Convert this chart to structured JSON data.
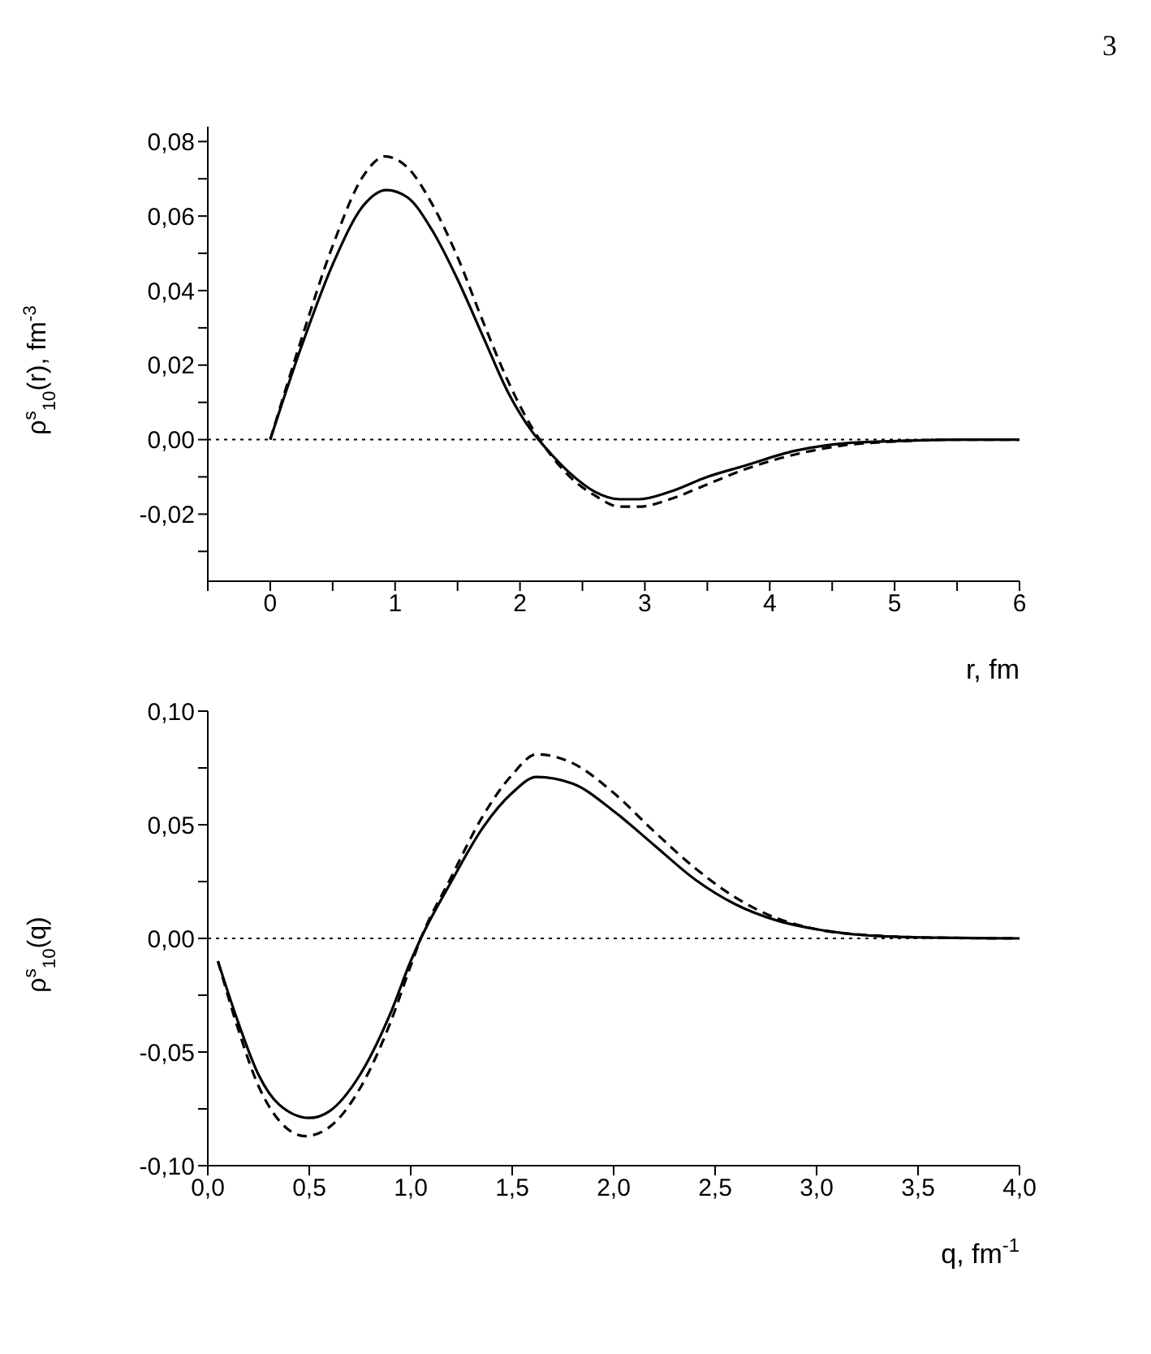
{
  "chart_data": [
    {
      "type": "line",
      "annotations": [
        "3"
      ],
      "xlabel": "r, fm",
      "ylabel": "ρ$^{s}$$_{10}$(r), fm$^{-3}$",
      "xlim": [
        -0.5,
        6
      ],
      "xticks": [
        {
          "value": -0.5,
          "label": null
        },
        0,
        {
          "value": 0.5,
          "label": null
        },
        1,
        {
          "value": 1.5,
          "label": null
        },
        2,
        {
          "value": 2.5,
          "label": null
        },
        3,
        {
          "value": 3.5,
          "label": null
        },
        4,
        {
          "value": 4.5,
          "label": null
        },
        5,
        {
          "value": 5.5,
          "label": null
        },
        6
      ],
      "ylim": [
        -0.038,
        0.084
      ],
      "yticks": [
        {
          "value": -0.03,
          "label": null
        },
        {
          "value": -0.02,
          "label": "-0,02"
        },
        {
          "value": -0.01,
          "label": null
        },
        {
          "value": 0,
          "label": "0,00"
        },
        {
          "value": 0.01,
          "label": null
        },
        {
          "value": 0.02,
          "label": "0,02"
        },
        {
          "value": 0.03,
          "label": null
        },
        {
          "value": 0.04,
          "label": "0,04"
        },
        {
          "value": 0.05,
          "label": null
        },
        {
          "value": 0.06,
          "label": "0,06"
        },
        {
          "value": 0.07,
          "label": null
        },
        {
          "value": 0.08,
          "label": "0,08"
        }
      ],
      "marker": "none",
      "ref_lines": [
        {
          "axis": "y",
          "value": 0,
          "line_style": "dotted",
          "color": "#000000"
        }
      ],
      "series": [
        {
          "color": "#000000",
          "line_style": "solid",
          "x": [
            0,
            0.25,
            0.5,
            0.75,
            0.93,
            1.1,
            1.3,
            1.5,
            1.7,
            1.9,
            2.1,
            2.2,
            2.4,
            2.6,
            2.8,
            2.95,
            3.2,
            3.5,
            3.8,
            4.2,
            4.6,
            5,
            5.5,
            6
          ],
          "values": [
            0,
            0.025,
            0.047,
            0.063,
            0.067,
            0.065,
            0.056,
            0.043,
            0.028,
            0.013,
            0.002,
            -0.002,
            -0.009,
            -0.014,
            -0.016,
            -0.016,
            -0.014,
            -0.01,
            -0.007,
            -0.003,
            -0.001,
            -0.0004,
            0,
            0
          ]
        },
        {
          "color": "#000000",
          "line_style": "dashed",
          "x": [
            0,
            0.25,
            0.5,
            0.75,
            0.92,
            1.1,
            1.3,
            1.5,
            1.7,
            1.9,
            2.1,
            2.2,
            2.4,
            2.6,
            2.8,
            2.95,
            3.2,
            3.5,
            3.8,
            4.2,
            4.6,
            5,
            5.5,
            6
          ],
          "values": [
            0,
            0.027,
            0.052,
            0.071,
            0.076,
            0.073,
            0.063,
            0.049,
            0.032,
            0.016,
            0.003,
            -0.002,
            -0.01,
            -0.015,
            -0.018,
            -0.018,
            -0.016,
            -0.012,
            -0.008,
            -0.004,
            -0.0015,
            -0.0005,
            0,
            0
          ]
        }
      ]
    },
    {
      "type": "line",
      "xlabel": "q, fm$^{-1}$",
      "ylabel": "ρ$^{s}$$_{10}$(q)",
      "xlim": [
        0,
        4
      ],
      "xticks": [
        {
          "value": 0,
          "label": "0,0"
        },
        {
          "value": 0.5,
          "label": "0,5"
        },
        {
          "value": 1,
          "label": "1,0"
        },
        {
          "value": 1.5,
          "label": "1,5"
        },
        {
          "value": 2,
          "label": "2,0"
        },
        {
          "value": 2.5,
          "label": "2,5"
        },
        {
          "value": 3,
          "label": "3,0"
        },
        {
          "value": 3.5,
          "label": "3,5"
        },
        {
          "value": 4,
          "label": "4,0"
        }
      ],
      "ylim": [
        -0.1,
        0.1
      ],
      "yticks": [
        {
          "value": -0.1,
          "label": "-0,10"
        },
        {
          "value": -0.075,
          "label": null
        },
        {
          "value": -0.05,
          "label": "-0,05"
        },
        {
          "value": -0.025,
          "label": null
        },
        {
          "value": 0,
          "label": "0,00"
        },
        {
          "value": 0.025,
          "label": null
        },
        {
          "value": 0.05,
          "label": "0,05"
        },
        {
          "value": 0.075,
          "label": null
        },
        {
          "value": 0.1,
          "label": "0,10"
        }
      ],
      "marker": "none",
      "ref_lines": [
        {
          "axis": "y",
          "value": 0,
          "line_style": "dotted",
          "color": "#000000"
        }
      ],
      "series": [
        {
          "color": "#000000",
          "line_style": "solid",
          "x": [
            0.05,
            0.15,
            0.25,
            0.35,
            0.5,
            0.6,
            0.75,
            0.9,
            1,
            1.05,
            1.2,
            1.35,
            1.5,
            1.62,
            1.8,
            2,
            2.2,
            2.4,
            2.6,
            2.8,
            3,
            3.3,
            3.6,
            4
          ],
          "values": [
            -0.01,
            -0.037,
            -0.06,
            -0.073,
            -0.079,
            -0.076,
            -0.06,
            -0.033,
            -0.01,
            0,
            0.025,
            0.048,
            0.064,
            0.071,
            0.068,
            0.056,
            0.041,
            0.026,
            0.015,
            0.008,
            0.004,
            0.001,
            0.0003,
            0
          ]
        },
        {
          "color": "#000000",
          "line_style": "dashed",
          "x": [
            0.05,
            0.15,
            0.25,
            0.35,
            0.48,
            0.6,
            0.75,
            0.9,
            1,
            1.05,
            1.2,
            1.35,
            1.5,
            1.62,
            1.8,
            2,
            2.2,
            2.4,
            2.6,
            2.8,
            3,
            3.3,
            3.6,
            4
          ],
          "values": [
            -0.01,
            -0.04,
            -0.065,
            -0.08,
            -0.087,
            -0.083,
            -0.066,
            -0.037,
            -0.012,
            0,
            0.027,
            0.053,
            0.072,
            0.081,
            0.077,
            0.064,
            0.047,
            0.031,
            0.018,
            0.009,
            0.004,
            0.0012,
            0.0003,
            0
          ]
        }
      ]
    }
  ]
}
